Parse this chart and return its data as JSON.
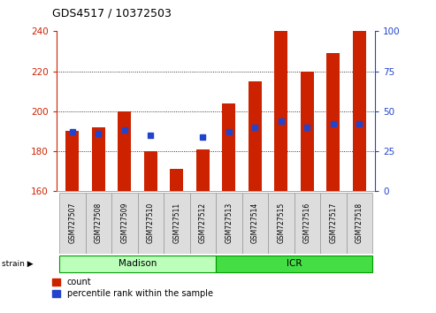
{
  "title": "GDS4517 / 10372503",
  "samples": [
    "GSM727507",
    "GSM727508",
    "GSM727509",
    "GSM727510",
    "GSM727511",
    "GSM727512",
    "GSM727513",
    "GSM727514",
    "GSM727515",
    "GSM727516",
    "GSM727517",
    "GSM727518"
  ],
  "red_values": [
    190,
    192,
    200,
    180,
    171,
    181,
    204,
    215,
    240,
    220,
    229,
    240
  ],
  "blue_percentile": [
    37,
    36,
    38,
    35,
    null,
    34,
    37,
    40,
    44,
    40,
    42,
    42
  ],
  "ylim_left": [
    160,
    240
  ],
  "ylim_right": [
    0,
    100
  ],
  "yticks_left": [
    160,
    180,
    200,
    220,
    240
  ],
  "yticks_right": [
    0,
    25,
    50,
    75,
    100
  ],
  "bar_bottom": 160,
  "bar_color": "#cc2200",
  "blue_color": "#2244cc",
  "left_axis_color": "#cc2200",
  "right_axis_color": "#2244cc",
  "grid_values": [
    180,
    200,
    220
  ],
  "madison_label": "Madison",
  "icr_label": "ICR",
  "madison_color": "#bbffbb",
  "icr_color": "#44dd44",
  "strain_label": "strain",
  "legend_count": "count",
  "legend_pct": "percentile rank within the sample",
  "bar_width": 0.5,
  "blue_marker_size": 4
}
